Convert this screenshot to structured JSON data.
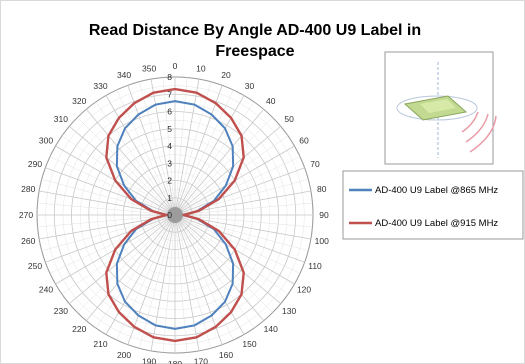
{
  "chart_data": {
    "type": "radar",
    "title_lines": [
      "Read Distance By Angle AD-400 U9 Label in",
      "Freespace"
    ],
    "angle_ticks": [
      0,
      10,
      20,
      30,
      40,
      50,
      60,
      70,
      80,
      90,
      100,
      110,
      120,
      130,
      140,
      150,
      160,
      170,
      180,
      190,
      200,
      210,
      220,
      230,
      240,
      250,
      260,
      270,
      280,
      290,
      300,
      310,
      320,
      330,
      340,
      350
    ],
    "radial_ticks": [
      0,
      1,
      2,
      3,
      4,
      5,
      6,
      7,
      8
    ],
    "rlim": [
      0,
      8
    ],
    "grid": true,
    "legend_position": "right",
    "series": [
      {
        "name": "AD-400 U9 Label @865 MHz",
        "color": "#4f81bd",
        "angles": [
          0,
          10,
          20,
          30,
          40,
          50,
          60,
          70,
          80,
          90,
          100,
          110,
          120,
          130,
          140,
          150,
          160,
          170,
          180,
          190,
          200,
          210,
          220,
          230,
          240,
          250,
          260,
          270,
          280,
          290,
          300,
          310,
          320,
          330,
          340,
          350
        ],
        "values": [
          6.6,
          6.5,
          6.2,
          5.8,
          5.2,
          4.4,
          3.4,
          2.4,
          1.3,
          0.5,
          1.3,
          2.4,
          3.4,
          4.4,
          5.2,
          5.8,
          6.2,
          6.5,
          6.6,
          6.5,
          6.2,
          5.8,
          5.2,
          4.4,
          3.4,
          2.4,
          1.3,
          0.5,
          1.3,
          2.4,
          3.4,
          4.4,
          5.2,
          5.8,
          6.2,
          6.5
        ]
      },
      {
        "name": "AD-400 U9 Label @915 MHz",
        "color": "#c0504d",
        "angles": [
          0,
          10,
          20,
          30,
          40,
          50,
          60,
          70,
          80,
          90,
          100,
          110,
          120,
          130,
          140,
          150,
          160,
          170,
          180,
          190,
          200,
          210,
          220,
          230,
          240,
          250,
          260,
          270,
          280,
          290,
          300,
          310,
          320,
          330,
          340,
          350
        ],
        "values": [
          7.3,
          7.2,
          6.9,
          6.5,
          6.0,
          5.2,
          4.0,
          2.7,
          1.4,
          0.5,
          1.4,
          2.7,
          4.0,
          5.2,
          6.0,
          6.5,
          6.9,
          7.2,
          7.3,
          7.2,
          6.9,
          6.5,
          6.0,
          5.2,
          4.0,
          2.7,
          1.4,
          0.5,
          1.4,
          2.7,
          4.0,
          5.2,
          6.0,
          6.5,
          6.9,
          7.2
        ]
      }
    ]
  }
}
